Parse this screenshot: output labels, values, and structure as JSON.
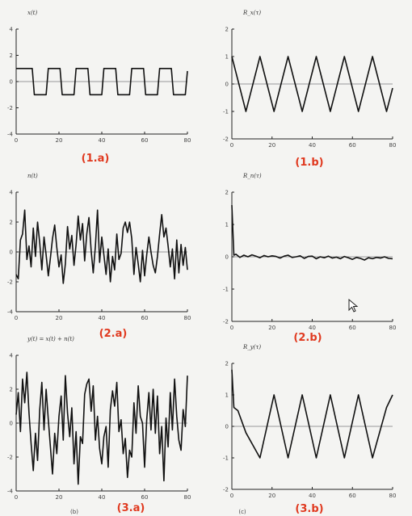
{
  "chart_data": [
    {
      "type": "line",
      "title": "x(t)",
      "caption": "(1.a)",
      "xlim": [
        0,
        80
      ],
      "ylim": [
        -4,
        4
      ],
      "xticks": [
        "0",
        "20",
        "40",
        "60",
        "80"
      ],
      "yticks": [
        "4",
        "2",
        "0",
        "-2",
        "-4"
      ],
      "grid": false,
      "series": [
        {
          "x": [
            0,
            0.5,
            7.5,
            8.5,
            14,
            15,
            20.5,
            21.5,
            27,
            28,
            33.5,
            34.5,
            40,
            41,
            46.5,
            47.5,
            53,
            54,
            59.5,
            60.5,
            66,
            67,
            72.5,
            73.5,
            79,
            80
          ],
          "values": [
            1,
            1,
            1,
            -1,
            -1,
            1,
            1,
            -1,
            -1,
            1,
            1,
            -1,
            -1,
            1,
            1,
            -1,
            -1,
            1,
            1,
            -1,
            -1,
            1,
            1,
            -1,
            -1,
            0.8
          ]
        }
      ]
    },
    {
      "type": "line",
      "title": "R_x(τ)",
      "caption": "(1.b)",
      "xlim": [
        0,
        80
      ],
      "ylim": [
        -2,
        2
      ],
      "xticks": [
        "0",
        "20",
        "40",
        "60",
        "80"
      ],
      "yticks": [
        "2",
        "1",
        "0",
        "-1",
        "-2"
      ],
      "grid": false,
      "series": [
        {
          "x": [
            0,
            7,
            14,
            21,
            28,
            35,
            42,
            49,
            56,
            63,
            70,
            77,
            80
          ],
          "values": [
            1,
            -1,
            1,
            -1,
            1,
            -1,
            1,
            -1,
            1,
            -1,
            1,
            -1,
            -0.15
          ]
        }
      ]
    },
    {
      "type": "line",
      "title": "n(t)",
      "caption": "(2.a)",
      "xlim": [
        0,
        80
      ],
      "ylim": [
        -4,
        4
      ],
      "xticks": [
        "0",
        "20",
        "40",
        "60",
        "80"
      ],
      "yticks": [
        "4",
        "2",
        "0",
        "-2",
        "-4"
      ],
      "grid": false,
      "series": [
        {
          "x": [
            0,
            1,
            2,
            3,
            4,
            5,
            6,
            7,
            8,
            9,
            10,
            11,
            12,
            13,
            14,
            15,
            16,
            17,
            18,
            19,
            20,
            21,
            22,
            23,
            24,
            25,
            26,
            27,
            28,
            29,
            30,
            31,
            32,
            33,
            34,
            35,
            36,
            37,
            38,
            39,
            40,
            41,
            42,
            43,
            44,
            45,
            46,
            47,
            48,
            49,
            50,
            51,
            52,
            53,
            54,
            55,
            56,
            57,
            58,
            59,
            60,
            61,
            62,
            63,
            64,
            65,
            66,
            67,
            68,
            69,
            70,
            71,
            72,
            73,
            74,
            75,
            76,
            77,
            78,
            79,
            80
          ],
          "values": [
            -1.5,
            -1.8,
            0.8,
            1.2,
            2.8,
            -0.5,
            0.4,
            -1.0,
            1.6,
            -0.3,
            2.0,
            0.6,
            -1.2,
            1.0,
            -0.2,
            -1.6,
            -0.4,
            0.9,
            1.8,
            0.3,
            -1.0,
            -0.2,
            -2.1,
            -0.8,
            1.7,
            0.2,
            1.1,
            -0.9,
            0.5,
            2.4,
            0.8,
            1.9,
            -0.6,
            1.2,
            2.3,
            0.1,
            -1.4,
            0.4,
            2.8,
            -0.7,
            1.0,
            -0.2,
            -1.5,
            0.2,
            -2.0,
            -0.3,
            -1.2,
            1.2,
            -0.5,
            -0.1,
            1.6,
            2.0,
            1.3,
            2.0,
            0.9,
            -1.5,
            0.3,
            -0.8,
            -2.0,
            0.1,
            -1.6,
            -0.2,
            1.0,
            0.0,
            -0.9,
            -1.4,
            -0.3,
            1.2,
            2.5,
            1.0,
            1.6,
            0.4,
            -1.0,
            0.2,
            -1.8,
            0.8,
            -1.4,
            0.5,
            -0.9,
            0.3,
            -1.2
          ]
        }
      ]
    },
    {
      "type": "line",
      "title": "R_n(τ)",
      "caption": "(2.b)",
      "xlim": [
        0,
        80
      ],
      "ylim": [
        -2,
        2
      ],
      "xticks": [
        "0",
        "20",
        "40",
        "60",
        "80"
      ],
      "yticks": [
        "2",
        "1",
        "0",
        "-1",
        "-2"
      ],
      "grid": false,
      "series": [
        {
          "x": [
            0,
            1,
            2,
            4,
            6,
            8,
            10,
            12,
            14,
            16,
            18,
            20,
            22,
            24,
            26,
            28,
            30,
            32,
            34,
            36,
            38,
            40,
            42,
            44,
            46,
            48,
            50,
            52,
            54,
            56,
            58,
            60,
            62,
            64,
            66,
            68,
            70,
            72,
            74,
            76,
            78,
            80
          ],
          "values": [
            1.6,
            0.05,
            0.08,
            -0.02,
            0.05,
            0.0,
            0.06,
            0.02,
            -0.03,
            0.04,
            0.0,
            0.03,
            0.01,
            -0.04,
            0.02,
            0.05,
            -0.02,
            0.0,
            0.03,
            -0.05,
            0.01,
            0.02,
            -0.06,
            0.0,
            -0.03,
            0.02,
            -0.04,
            -0.01,
            -0.06,
            0.01,
            -0.03,
            -0.08,
            -0.02,
            -0.05,
            -0.1,
            -0.03,
            -0.06,
            -0.02,
            -0.04,
            0.0,
            -0.05,
            -0.06
          ]
        }
      ]
    },
    {
      "type": "line",
      "title": "y(t) = x(t) + n(t)",
      "caption": "(3.a)",
      "xlim": [
        0,
        80
      ],
      "ylim": [
        -4,
        4
      ],
      "xticks": [
        "0",
        "20",
        "40",
        "60",
        "80"
      ],
      "yticks": [
        "4",
        "2",
        "0",
        "-2",
        "-4"
      ],
      "grid": false,
      "series": [
        {
          "x": [
            0,
            1,
            2,
            3,
            4,
            5,
            6,
            7,
            8,
            9,
            10,
            11,
            12,
            13,
            14,
            15,
            16,
            17,
            18,
            19,
            20,
            21,
            22,
            23,
            24,
            25,
            26,
            27,
            28,
            29,
            30,
            31,
            32,
            33,
            34,
            35,
            36,
            37,
            38,
            39,
            40,
            41,
            42,
            43,
            44,
            45,
            46,
            47,
            48,
            49,
            50,
            51,
            52,
            53,
            54,
            55,
            56,
            57,
            58,
            59,
            60,
            61,
            62,
            63,
            64,
            65,
            66,
            67,
            68,
            69,
            70,
            71,
            72,
            73,
            74,
            75,
            76,
            77,
            78,
            79,
            80
          ],
          "values": [
            0.5,
            1.8,
            -0.5,
            2.6,
            1.2,
            3.0,
            0.6,
            -1.2,
            -2.8,
            -0.6,
            -2.2,
            0.8,
            2.4,
            -0.4,
            2.0,
            0.2,
            -1.4,
            -3.0,
            -0.6,
            -1.8,
            0.4,
            1.6,
            -1.0,
            2.8,
            0.6,
            -0.8,
            0.9,
            -2.4,
            -0.5,
            -3.6,
            -0.8,
            -1.2,
            1.7,
            2.3,
            2.6,
            0.7,
            2.2,
            -1.0,
            0.4,
            -1.5,
            -2.4,
            -0.8,
            -0.2,
            -2.6,
            0.8,
            1.9,
            1.0,
            2.4,
            -0.5,
            0.2,
            -1.8,
            -0.9,
            -3.2,
            -1.6,
            -2.0,
            1.2,
            -0.6,
            2.2,
            0.4,
            0.0,
            -2.6,
            0.2,
            1.8,
            -0.4,
            2.0,
            -0.6,
            1.6,
            -1.8,
            -0.2,
            -3.4,
            0.3,
            -1.4,
            1.8,
            -0.4,
            2.6,
            0.4,
            -1.0,
            -1.6,
            0.8,
            -0.2,
            2.8
          ]
        }
      ]
    },
    {
      "type": "line",
      "title": "R_y(τ)",
      "caption": "(3.b)",
      "xlim": [
        0,
        80
      ],
      "ylim": [
        -2,
        2
      ],
      "xticks": [
        "0",
        "20",
        "40",
        "60",
        "80"
      ],
      "yticks": [
        "2",
        "1",
        "0",
        "-1",
        "-2"
      ],
      "grid": false,
      "series": [
        {
          "x": [
            0,
            1,
            3,
            7,
            14,
            21,
            28,
            35,
            42,
            49,
            56,
            63,
            70,
            77,
            80
          ],
          "values": [
            1.8,
            0.6,
            0.5,
            -0.2,
            -1.0,
            1.0,
            -1.0,
            1.0,
            -1.0,
            1.0,
            -1.0,
            1.0,
            -1.0,
            0.6,
            1.0
          ]
        }
      ]
    }
  ],
  "footer_marks": [
    "(b)",
    "(c)"
  ],
  "icons": {
    "cursor": "mouse-pointer-icon"
  }
}
